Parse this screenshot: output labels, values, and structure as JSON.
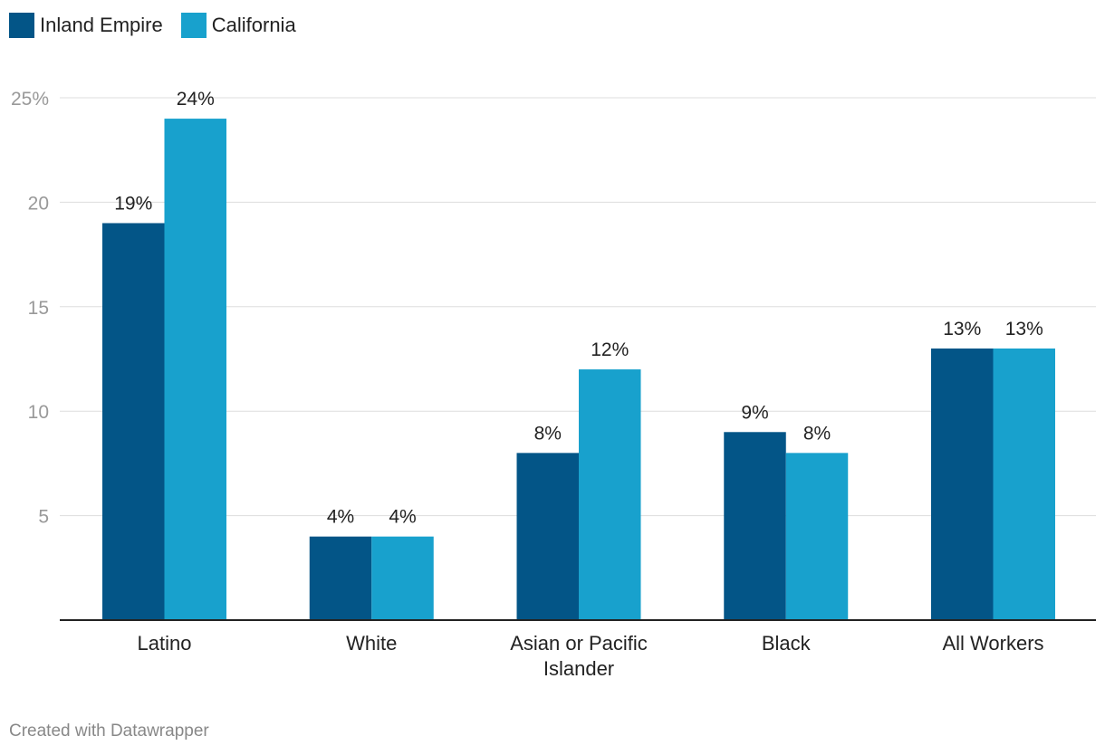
{
  "legend": [
    {
      "name": "Inland Empire",
      "color": "#035587"
    },
    {
      "name": "California",
      "color": "#18a1cd"
    }
  ],
  "chart_data": {
    "type": "bar",
    "title": "",
    "xlabel": "",
    "ylabel": "",
    "categories": [
      [
        "Latino"
      ],
      [
        "White"
      ],
      [
        "Asian or Pacific",
        "Islander"
      ],
      [
        "Black"
      ],
      [
        "All Workers"
      ]
    ],
    "series": [
      {
        "name": "Inland Empire",
        "color": "#035587",
        "values": [
          19,
          4,
          8,
          9,
          13
        ],
        "labels": [
          "19%",
          "4%",
          "8%",
          "9%",
          "13%"
        ]
      },
      {
        "name": "California",
        "color": "#18a1cd",
        "values": [
          24,
          4,
          12,
          8,
          13
        ],
        "labels": [
          "24%",
          "4%",
          "12%",
          "8%",
          "13%"
        ]
      }
    ],
    "ylim": [
      0,
      25
    ],
    "yticks": [
      {
        "value": 5,
        "label": "5"
      },
      {
        "value": 10,
        "label": "10"
      },
      {
        "value": 15,
        "label": "15"
      },
      {
        "value": 20,
        "label": "20"
      },
      {
        "value": 25,
        "label": "25%"
      }
    ],
    "grid": true,
    "legend_position": "top-left"
  },
  "footer": {
    "credit": "Created with Datawrapper"
  }
}
